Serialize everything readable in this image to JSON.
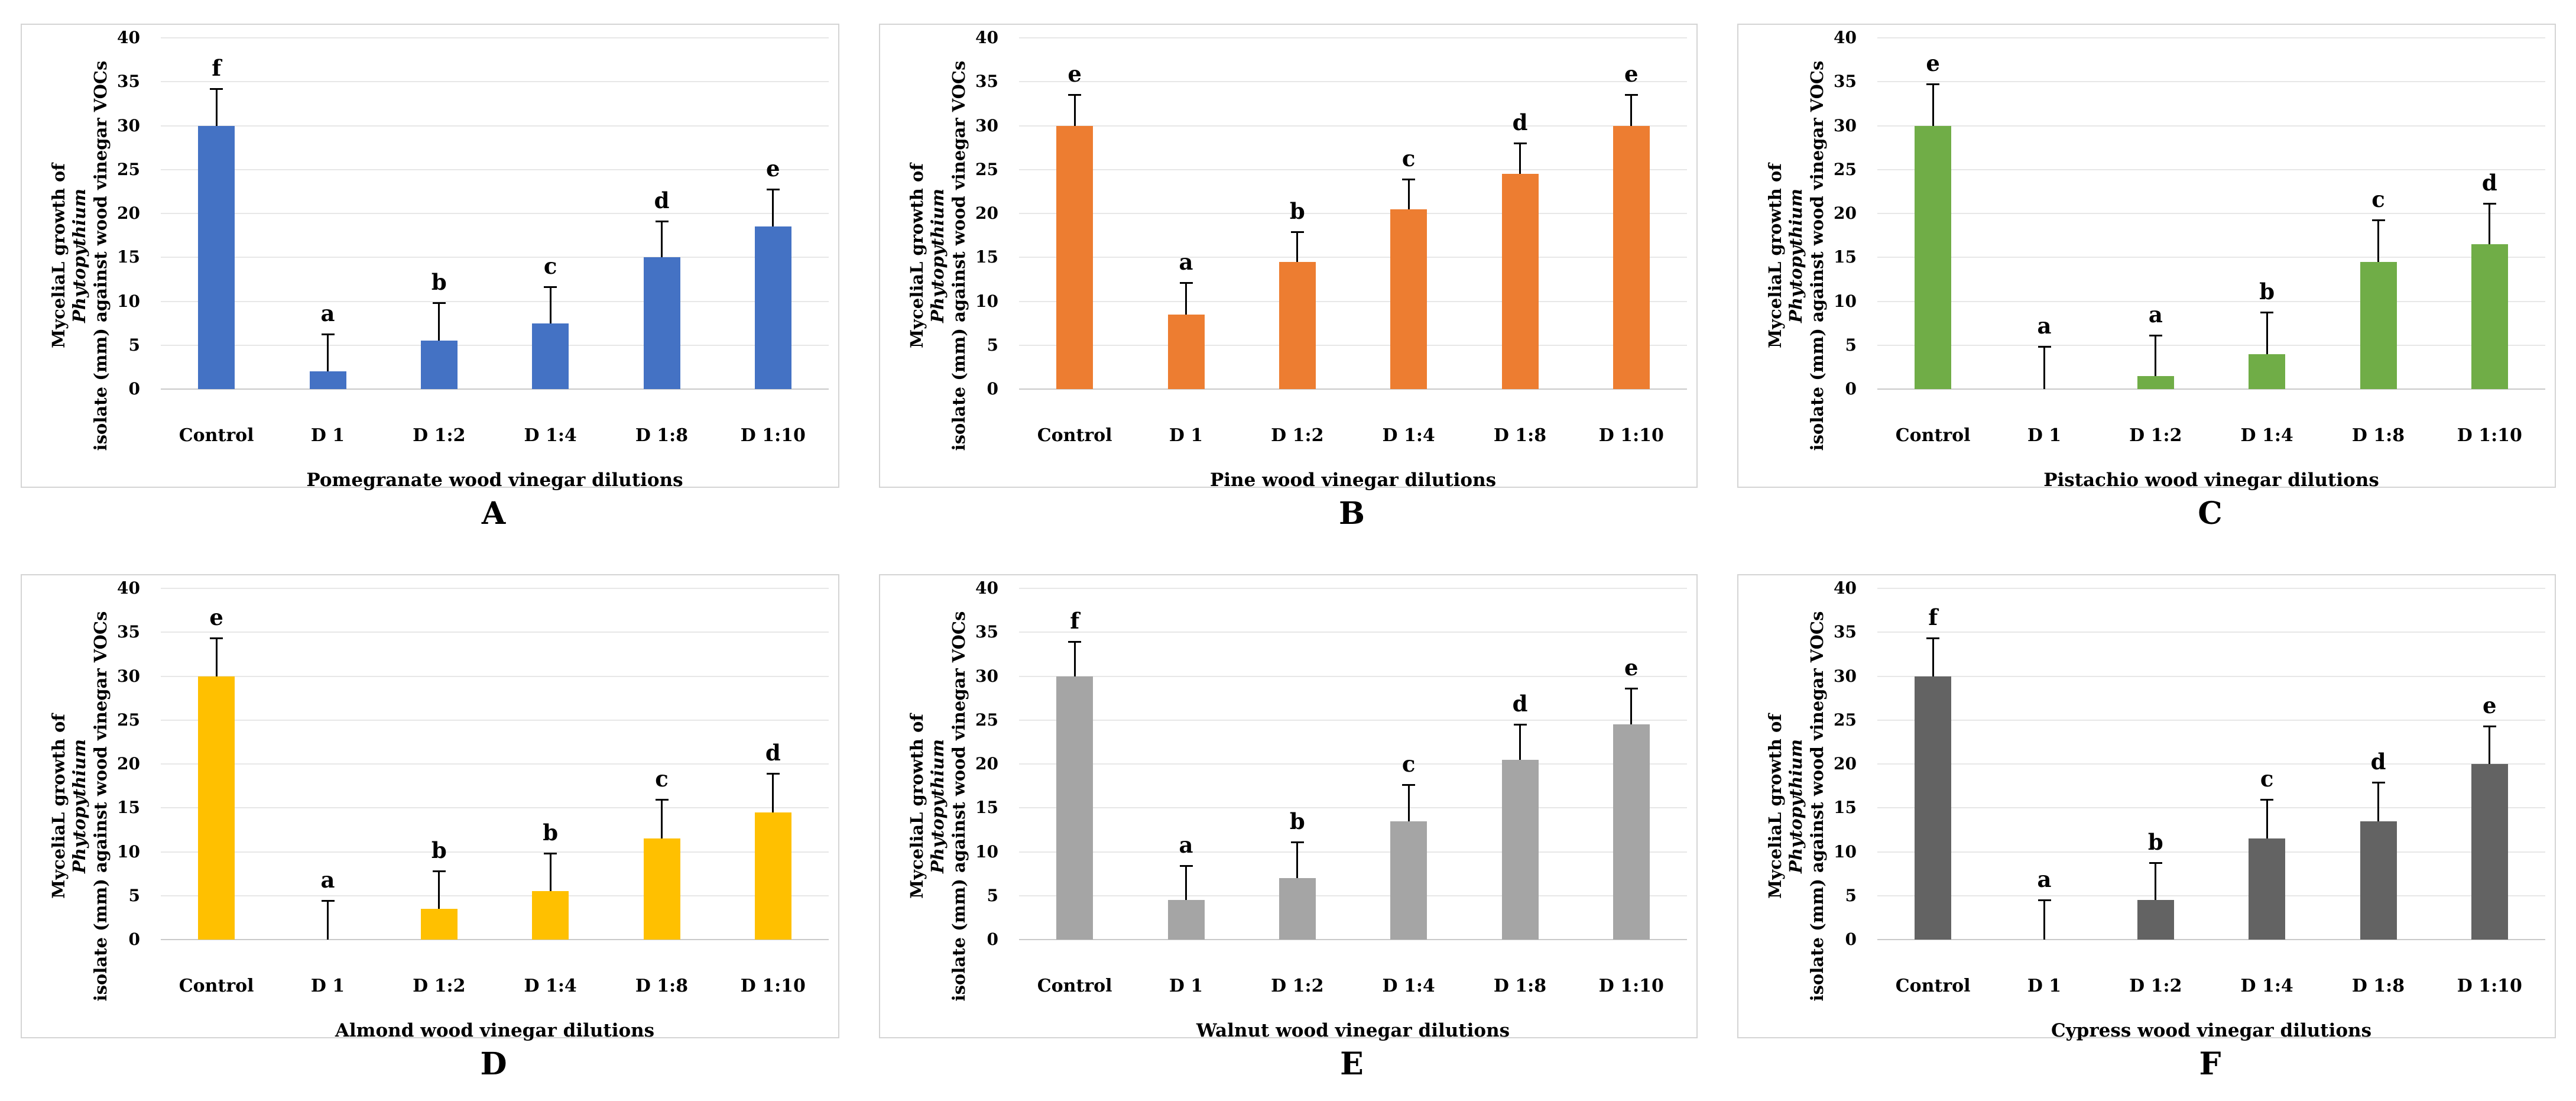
{
  "figure": {
    "ylabel": {
      "pre": "MyceliaL growth of ",
      "italic": "Phytopythium",
      "post": " isolate (mm) against wood vinegar VOCs"
    }
  },
  "chart_data": [
    {
      "type": "bar",
      "panel": "A",
      "color": "#4472C4",
      "xlabel": "Pomegranate wood vinegar dilutions",
      "ylabel": "MyceliaL growth of Phytopythium isolate (mm) against wood vinegar VOCs",
      "categories": [
        "Control",
        "D 1",
        "D 1:2",
        "D 1:4",
        "D 1:8",
        "D 1:10"
      ],
      "values": [
        30,
        2,
        5.5,
        7.5,
        15,
        18.5
      ],
      "error_top": [
        34.3,
        6.3,
        9.9,
        11.7,
        19.2,
        22.8
      ],
      "letters": [
        "f",
        "a",
        "b",
        "c",
        "d",
        "e"
      ],
      "ylim": [
        0,
        40
      ],
      "ytick_step": 5,
      "grid": true,
      "legend": "none"
    },
    {
      "type": "bar",
      "panel": "B",
      "color": "#ED7D31",
      "xlabel": "Pine wood vinegar dilutions",
      "ylabel": "MyceliaL growth of Phytopythium isolate (mm) against wood vinegar VOCs",
      "categories": [
        "Control",
        "D 1",
        "D 1:2",
        "D 1:4",
        "D 1:8",
        "D 1:10"
      ],
      "values": [
        30,
        8.5,
        14.5,
        20.5,
        24.5,
        30
      ],
      "error_top": [
        33.6,
        12.2,
        18,
        24,
        28.1,
        33.6
      ],
      "letters": [
        "e",
        "a",
        "b",
        "c",
        "d",
        "e"
      ],
      "ylim": [
        0,
        40
      ],
      "ytick_step": 5,
      "grid": true,
      "legend": "none"
    },
    {
      "type": "bar",
      "panel": "C",
      "color": "#70AD47",
      "xlabel": "Pistachio wood vinegar dilutions",
      "ylabel": "MyceliaL growth of Phytopythium isolate (mm) against wood vinegar VOCs",
      "categories": [
        "Control",
        "D 1",
        "D 1:2",
        "D 1:4",
        "D 1:8",
        "D 1:10"
      ],
      "values": [
        30,
        0,
        1.5,
        4,
        14.5,
        16.5
      ],
      "error_top": [
        34.8,
        4.9,
        6.2,
        8.8,
        19.3,
        21.2
      ],
      "letters": [
        "e",
        "a",
        "a",
        "b",
        "c",
        "d"
      ],
      "ylim": [
        0,
        40
      ],
      "ytick_step": 5,
      "grid": true,
      "legend": "none"
    },
    {
      "type": "bar",
      "panel": "D",
      "color": "#FFC000",
      "xlabel": "Almond wood vinegar dilutions",
      "ylabel": "MyceliaL growth of Phytopythium isolate (mm) against wood vinegar VOCs",
      "categories": [
        "Control",
        "D 1",
        "D 1:2",
        "D 1:4",
        "D 1:8",
        "D 1:10"
      ],
      "values": [
        30,
        0,
        3.5,
        5.5,
        11.5,
        14.5
      ],
      "error_top": [
        34.4,
        4.5,
        7.9,
        9.9,
        16,
        19
      ],
      "letters": [
        "e",
        "a",
        "b",
        "b",
        "c",
        "d"
      ],
      "ylim": [
        0,
        40
      ],
      "ytick_step": 5,
      "grid": true,
      "legend": "none"
    },
    {
      "type": "bar",
      "panel": "E",
      "color": "#A5A5A5",
      "xlabel": "Walnut wood vinegar dilutions",
      "ylabel": "MyceliaL growth of Phytopythium isolate (mm) against wood vinegar VOCs",
      "categories": [
        "Control",
        "D 1",
        "D 1:2",
        "D 1:4",
        "D 1:8",
        "D 1:10"
      ],
      "values": [
        30,
        4.5,
        7,
        13.5,
        20.5,
        24.5
      ],
      "error_top": [
        34,
        8.5,
        11.2,
        17.7,
        24.6,
        28.7
      ],
      "letters": [
        "f",
        "a",
        "b",
        "c",
        "d",
        "e"
      ],
      "ylim": [
        0,
        40
      ],
      "ytick_step": 5,
      "grid": true,
      "legend": "none"
    },
    {
      "type": "bar",
      "panel": "F",
      "color": "#636363",
      "xlabel": "Cypress wood vinegar dilutions",
      "ylabel": "MyceliaL growth of Phytopythium isolate (mm) against wood vinegar VOCs",
      "categories": [
        "Control",
        "D 1",
        "D 1:2",
        "D 1:4",
        "D 1:8",
        "D 1:10"
      ],
      "values": [
        30,
        0,
        4.5,
        11.5,
        13.5,
        20
      ],
      "error_top": [
        34.4,
        4.6,
        8.8,
        16,
        18,
        24.4
      ],
      "letters": [
        "f",
        "a",
        "b",
        "c",
        "d",
        "e"
      ],
      "ylim": [
        0,
        40
      ],
      "ytick_step": 5,
      "grid": true,
      "legend": "none"
    }
  ]
}
